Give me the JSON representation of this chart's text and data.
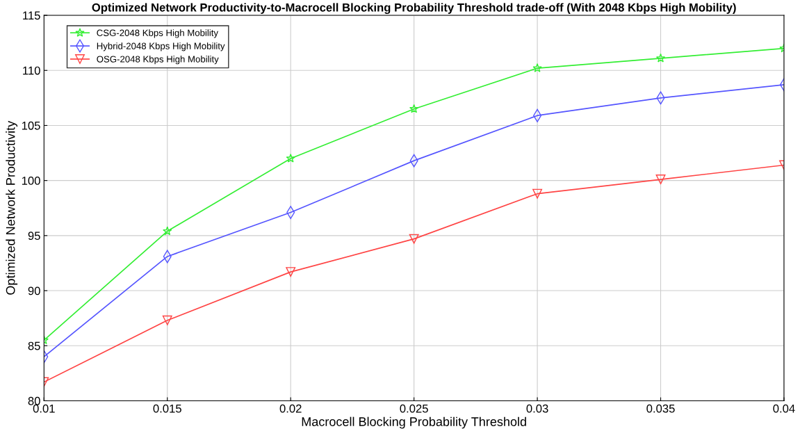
{
  "chart_data": {
    "type": "line",
    "title": "Optimized Network Productivity-to-Macrocell Blocking Probability Threshold trade-off (With 2048 Kbps High Mobility)",
    "xlabel": "Macrocell Blocking Probability Threshold",
    "ylabel": "Optimized Network Productivity",
    "x": [
      0.01,
      0.015,
      0.02,
      0.025,
      0.03,
      0.035,
      0.04
    ],
    "series": [
      {
        "name": "CSG-2048 Kbps High Mobility",
        "color": "#33ee33",
        "marker": "star",
        "values": [
          85.5,
          95.4,
          102.0,
          106.5,
          110.2,
          111.1,
          112.0
        ]
      },
      {
        "name": "Hybrid-2048 Kbps High Mobility",
        "color": "#5555ff",
        "marker": "diamond",
        "values": [
          84.0,
          93.1,
          97.1,
          101.8,
          105.9,
          107.5,
          108.7
        ]
      },
      {
        "name": "OSG-2048 Kbps High Mobility",
        "color": "#ff4444",
        "marker": "triangle",
        "values": [
          81.7,
          87.3,
          91.7,
          94.7,
          98.8,
          100.1,
          101.4
        ]
      }
    ],
    "xlim": [
      0.01,
      0.04
    ],
    "xticks": [
      0.01,
      0.015,
      0.02,
      0.025,
      0.03,
      0.035,
      0.04
    ],
    "ylim": [
      80,
      115
    ],
    "yticks": [
      80,
      85,
      90,
      95,
      100,
      105,
      110,
      115
    ],
    "grid": true,
    "legend": "top left",
    "line_style": "solid"
  }
}
